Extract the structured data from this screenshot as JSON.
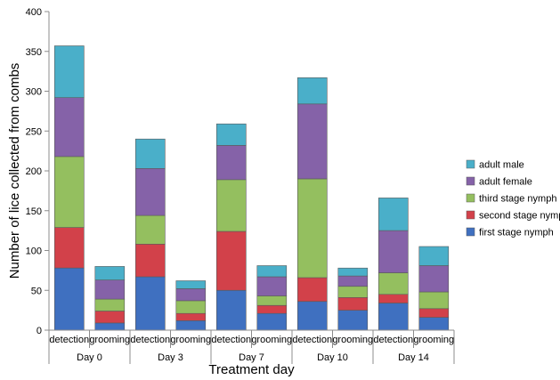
{
  "chart_data": {
    "type": "bar",
    "stacked": true,
    "xlabel": "Treatment day",
    "ylabel": "Number of lice collected from combs",
    "ylim": [
      0,
      400
    ],
    "yticks": [
      0,
      50,
      100,
      150,
      200,
      250,
      300,
      350,
      400
    ],
    "grid": false,
    "legend_position": "right",
    "groups": [
      "Day 0",
      "Day 3",
      "Day 7",
      "Day 10",
      "Day 14"
    ],
    "categories": [
      "detection",
      "grooming",
      "detection",
      "grooming",
      "detection",
      "grooming",
      "detection",
      "grooming",
      "detection",
      "grooming"
    ],
    "series": [
      {
        "name": "first stage nymph",
        "color": "#3F70C0",
        "values": [
          78,
          9,
          67,
          12,
          50,
          21,
          36,
          25,
          34,
          16
        ]
      },
      {
        "name": "second stage nymph",
        "color": "#D2414A",
        "values": [
          51,
          15,
          41,
          9,
          74,
          10,
          30,
          16,
          11,
          11
        ]
      },
      {
        "name": "third stage nymph",
        "color": "#94BF5F",
        "values": [
          89,
          15,
          36,
          16,
          65,
          12,
          124,
          14,
          27,
          21
        ]
      },
      {
        "name": "adult female",
        "color": "#8562A8",
        "values": [
          74,
          24,
          59,
          15,
          43,
          24,
          94,
          13,
          53,
          33
        ]
      },
      {
        "name": "adult male",
        "color": "#4AAFC9",
        "values": [
          65,
          17,
          37,
          10,
          27,
          14,
          33,
          10,
          41,
          24
        ]
      }
    ]
  }
}
